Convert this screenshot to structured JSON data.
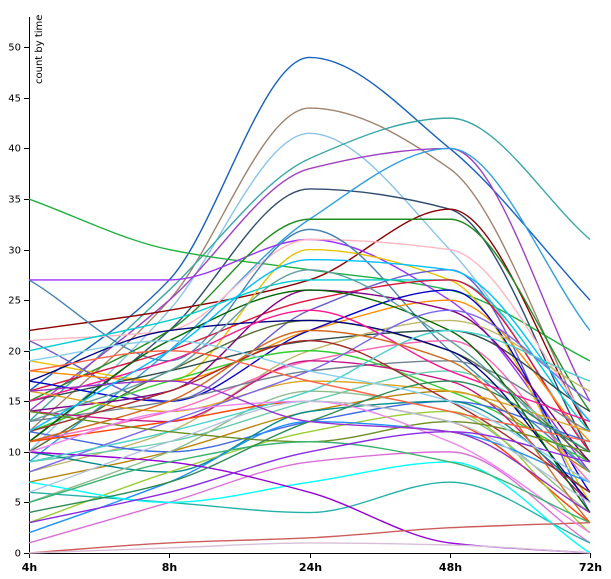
{
  "chart_data": {
    "type": "line",
    "ylabel": "count by time",
    "x": [
      "4h",
      "8h",
      "24h",
      "48h",
      "72h"
    ],
    "ylim": [
      0,
      53
    ],
    "y_ticks": [
      0,
      5,
      10,
      15,
      20,
      25,
      30,
      35,
      40,
      45,
      50
    ],
    "curve": "smooth (monotone)",
    "grid": false,
    "legend": "none",
    "series": [
      {
        "color": "#1560bd",
        "values": [
          16,
          27,
          49,
          40,
          25
        ]
      },
      {
        "color": "#a0826d",
        "values": [
          12,
          25,
          44,
          38,
          12
        ]
      },
      {
        "color": "#89c4e8",
        "values": [
          10,
          24,
          41.5,
          30,
          10
        ]
      },
      {
        "color": "#3aa6a6",
        "values": [
          13,
          26,
          39,
          43,
          31
        ]
      },
      {
        "color": "#a040c0",
        "values": [
          14,
          25,
          38,
          40,
          15
        ]
      },
      {
        "color": "#2e4d6e",
        "values": [
          11,
          22,
          36,
          34,
          10
        ]
      },
      {
        "color": "#20b040",
        "values": [
          35,
          30,
          28,
          26,
          19
        ]
      },
      {
        "color": "#30a0e0",
        "values": [
          9,
          20,
          33,
          40,
          22
        ]
      },
      {
        "color": "#8b0000",
        "values": [
          22,
          24,
          27,
          34,
          12
        ]
      },
      {
        "color": "#9b30ff",
        "values": [
          27,
          27,
          31,
          25,
          8
        ]
      },
      {
        "color": "#228b22",
        "values": [
          15,
          22,
          33,
          33,
          14
        ]
      },
      {
        "color": "#e6c200",
        "values": [
          19,
          17,
          30,
          27,
          5
        ]
      },
      {
        "color": "#ffb6c1",
        "values": [
          21,
          22,
          31,
          30,
          13
        ]
      },
      {
        "color": "#4682b4",
        "values": [
          27,
          19,
          32,
          20,
          8
        ]
      },
      {
        "color": "#6a5acd",
        "values": [
          21,
          15,
          24,
          28,
          4
        ]
      },
      {
        "color": "#00ced1",
        "values": [
          20,
          23,
          27,
          27,
          12
        ]
      },
      {
        "color": "#dc143c",
        "values": [
          16,
          20,
          25,
          27,
          10
        ]
      },
      {
        "color": "#ff8c00",
        "values": [
          18,
          17,
          22,
          25,
          11
        ]
      },
      {
        "color": "#2f4f4f",
        "values": [
          15,
          18,
          21,
          22,
          14
        ]
      },
      {
        "color": "#0000cd",
        "values": [
          17,
          15,
          22,
          26,
          6
        ]
      },
      {
        "color": "#556b2f",
        "values": [
          10,
          18,
          23,
          20,
          9
        ]
      },
      {
        "color": "#bdb76b",
        "values": [
          8,
          12,
          20,
          23,
          16
        ]
      },
      {
        "color": "#ff69b4",
        "values": [
          11,
          14,
          19,
          21,
          7
        ]
      },
      {
        "color": "#708090",
        "values": [
          13,
          15,
          18,
          19,
          12
        ]
      },
      {
        "color": "#32cd32",
        "values": [
          12,
          17,
          20,
          16,
          9
        ]
      },
      {
        "color": "#c71585",
        "values": [
          14,
          13,
          19,
          17,
          5
        ]
      },
      {
        "color": "#66cdaa",
        "values": [
          9,
          11,
          15,
          18,
          10
        ]
      },
      {
        "color": "#b8860b",
        "values": [
          7,
          10,
          14,
          16,
          8
        ]
      },
      {
        "color": "#4169e1",
        "values": [
          12,
          10,
          13,
          15,
          11
        ]
      },
      {
        "color": "#008b8b",
        "values": [
          10,
          8,
          14,
          15,
          6
        ]
      },
      {
        "color": "#8fbc8f",
        "values": [
          5,
          10,
          16,
          14,
          4
        ]
      },
      {
        "color": "#ff4500",
        "values": [
          11,
          13,
          15,
          13,
          3
        ]
      },
      {
        "color": "#9acd32",
        "values": [
          3,
          8,
          12,
          14,
          2
        ]
      },
      {
        "color": "#1e90ff",
        "values": [
          2,
          7,
          13,
          12,
          7
        ]
      },
      {
        "color": "#da70d6",
        "values": [
          1,
          5,
          9,
          10,
          1
        ]
      },
      {
        "color": "#20b2aa",
        "values": [
          6,
          5,
          4,
          7,
          1
        ]
      },
      {
        "color": "#00ffff",
        "values": [
          7,
          5,
          7,
          9,
          0
        ]
      },
      {
        "color": "#9400d3",
        "values": [
          10,
          9,
          6,
          1,
          0
        ]
      },
      {
        "color": "#cd5c5c",
        "values": [
          0,
          1,
          1.5,
          2.5,
          3
        ]
      },
      {
        "color": "#d8bfd8",
        "values": [
          0,
          0.5,
          1,
          0.8,
          0
        ]
      },
      {
        "color": "#000080",
        "values": [
          17,
          22,
          23,
          20,
          5
        ]
      },
      {
        "color": "#800080",
        "values": [
          14,
          16,
          26,
          24,
          9
        ]
      },
      {
        "color": "#ff1493",
        "values": [
          15,
          19,
          24,
          18,
          13
        ]
      },
      {
        "color": "#006400",
        "values": [
          11,
          21,
          26,
          22,
          4
        ]
      },
      {
        "color": "#daa520",
        "values": [
          16,
          14,
          17,
          16,
          12
        ]
      },
      {
        "color": "#5f9ea0",
        "values": [
          13,
          18,
          28,
          21,
          8
        ]
      },
      {
        "color": "#7b68ee",
        "values": [
          8,
          13,
          18,
          24,
          15
        ]
      },
      {
        "color": "#a52a2a",
        "values": [
          12,
          16,
          21,
          15,
          6
        ]
      },
      {
        "color": "#48d1cc",
        "values": [
          9,
          12,
          16,
          22,
          17
        ]
      },
      {
        "color": "#6b8e23",
        "values": [
          14,
          12,
          11,
          13,
          10
        ]
      },
      {
        "color": "#ee82ee",
        "values": [
          10,
          14,
          15,
          11,
          2
        ]
      },
      {
        "color": "#3cb371",
        "values": [
          5,
          9,
          11,
          9,
          3
        ]
      },
      {
        "color": "#b0c4de",
        "values": [
          6,
          11,
          15,
          13,
          5
        ]
      },
      {
        "color": "#ff6347",
        "values": [
          18,
          20,
          17,
          14,
          11
        ]
      },
      {
        "color": "#8a2be2",
        "values": [
          3,
          6,
          10,
          12,
          9
        ]
      },
      {
        "color": "#2e8b57",
        "values": [
          4,
          7,
          13,
          17,
          10
        ]
      },
      {
        "color": "#d2691e",
        "values": [
          11,
          15,
          22,
          19,
          3
        ]
      },
      {
        "color": "#87ceeb",
        "values": [
          19,
          21,
          18,
          15,
          7
        ]
      },
      {
        "color": "#9932cc",
        "values": [
          16,
          17,
          13,
          12,
          4
        ]
      },
      {
        "color": "#00bfff",
        "values": [
          12,
          20,
          29,
          28,
          13
        ]
      }
    ]
  }
}
